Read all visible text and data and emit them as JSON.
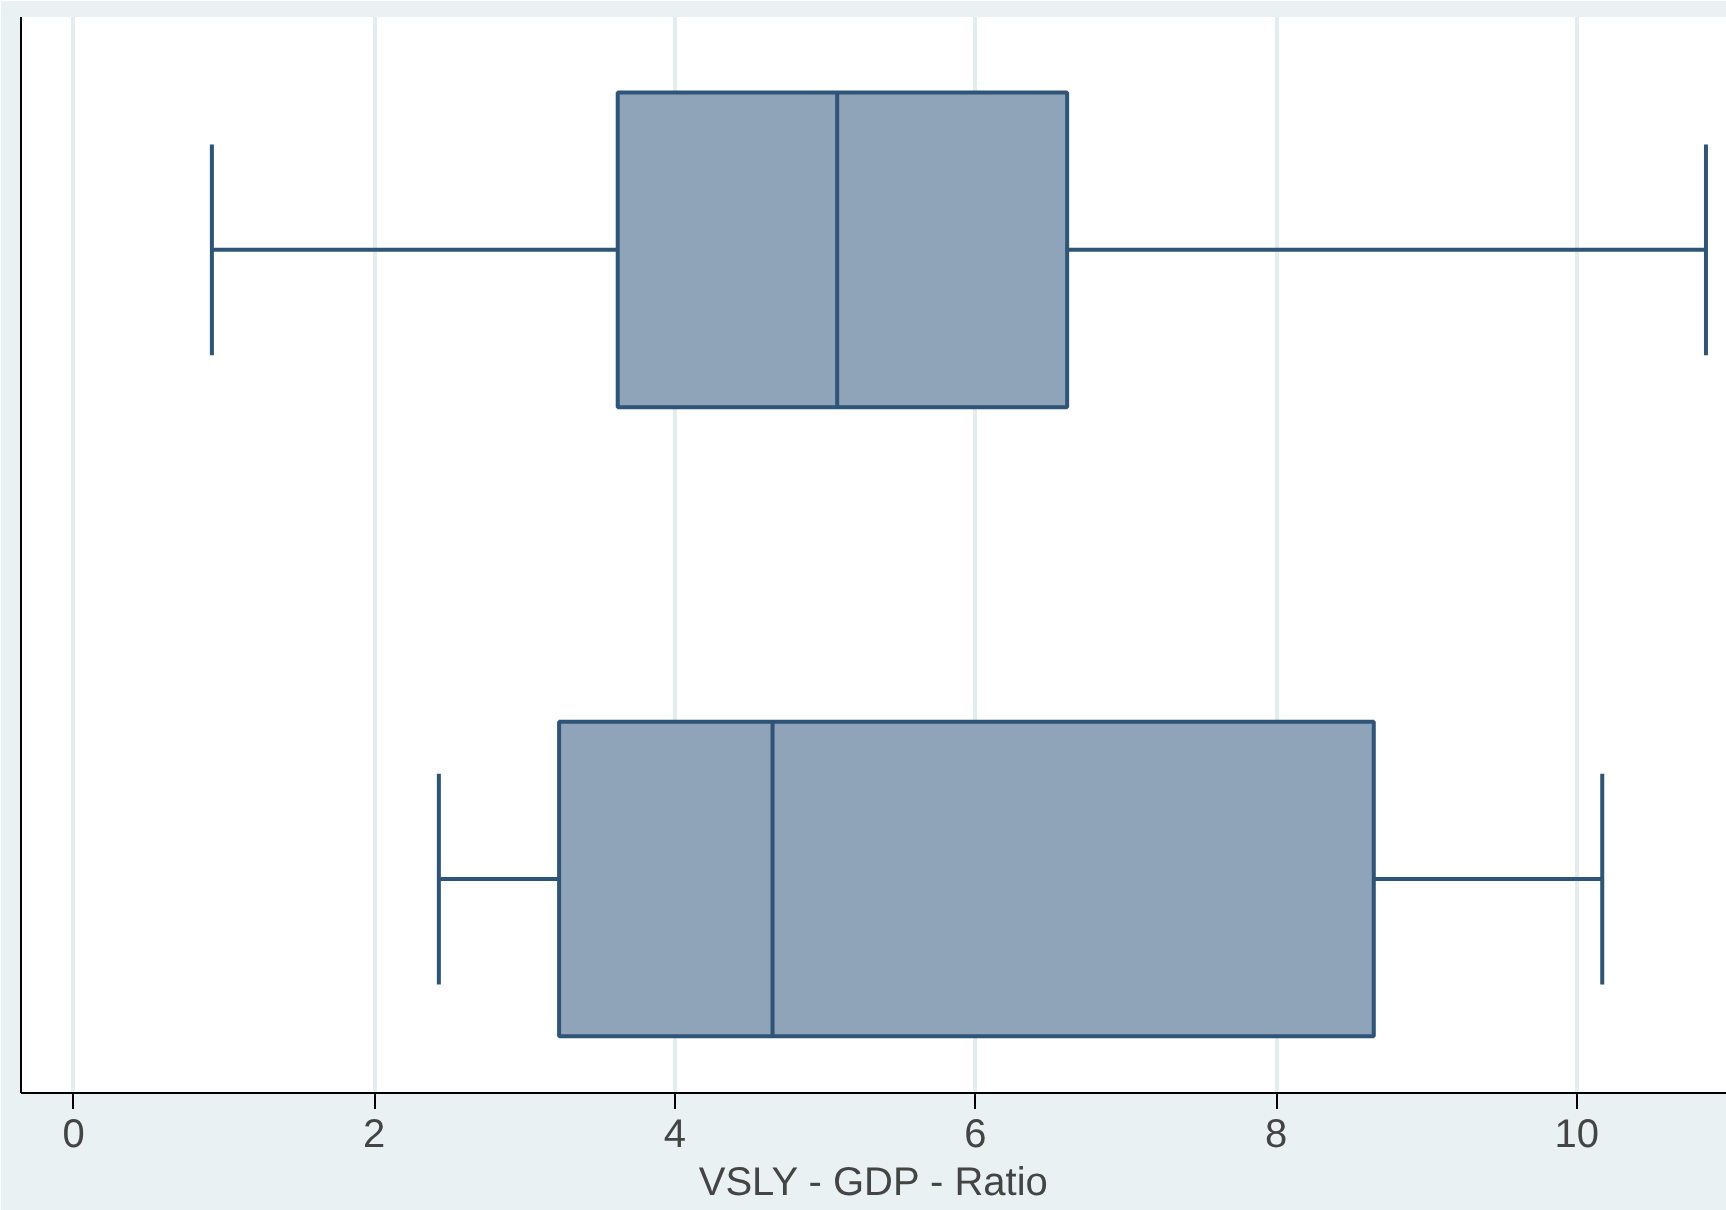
{
  "chart_data": {
    "type": "box",
    "orientation": "horizontal",
    "categories": [
      null,
      null
    ],
    "color": "#8fa4b8",
    "boxes": [
      {
        "low": 0.92,
        "q1": 3.62,
        "median": 5.08,
        "q3": 6.61,
        "high": 10.86
      },
      {
        "low": 2.43,
        "q1": 3.23,
        "median": 4.65,
        "q3": 8.65,
        "high": 10.17
      }
    ],
    "xlabel": "VSLY - GDP - Ratio",
    "xlim": [
      -0.35,
      11.0
    ],
    "xticks": [
      0,
      2,
      4,
      6,
      8,
      10
    ],
    "grid": "x"
  }
}
